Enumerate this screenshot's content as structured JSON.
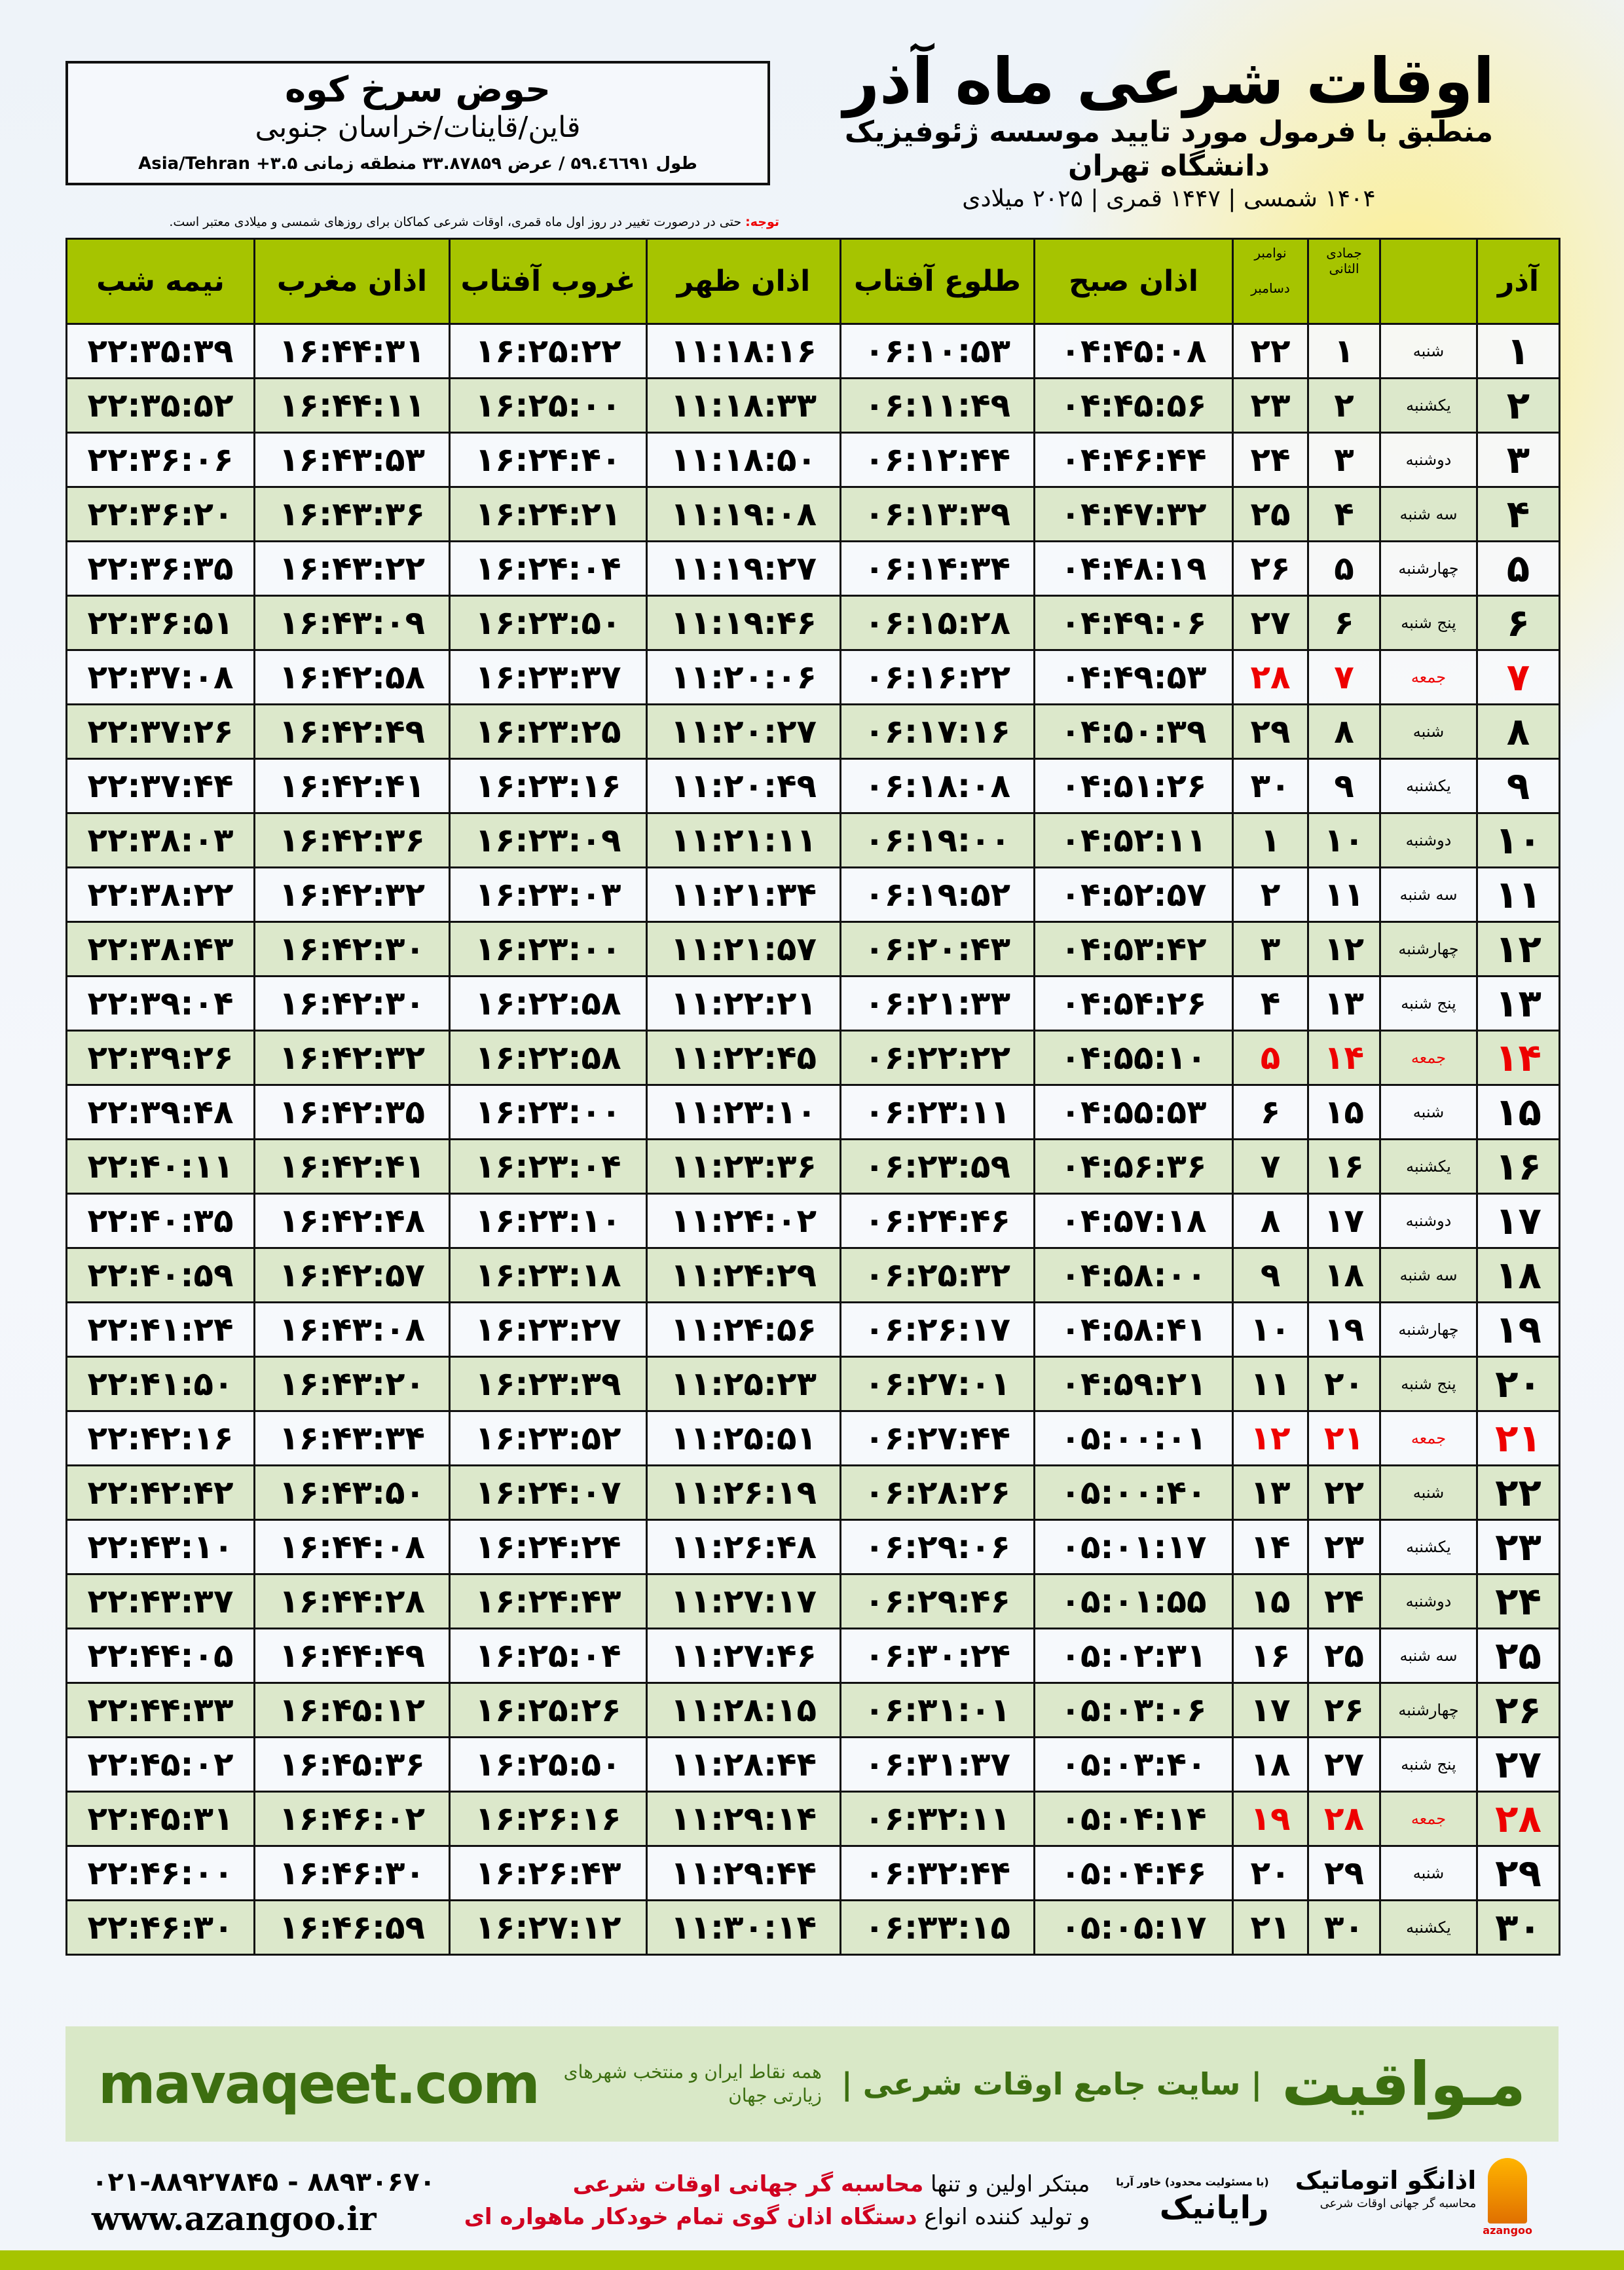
{
  "header": {
    "title": "اوقات شرعی ماه آذر",
    "subtitle": "منطبق با فرمول مورد تایید موسسه ژئوفیزیک دانشگاه تهران",
    "years": "۱۴۰۴ شمسی | ۱۴۴۷ قمری | ۲۰۲۵ میلادی",
    "note_label": "توجه:",
    "note_text": " حتی در درصورت تغییر در روز اول ماه قمری، اوقات شرعی کماکان برای روزهای شمسی و میلادی معتبر است."
  },
  "location": {
    "city": "حوض سرخ کوه",
    "region": "قاین/قاینات/خراسان جنوبی",
    "coords": "طول ۵۹.٤٦٦٩١ / عرض ۳۳.۸۷۸۵۹ منطقه زمانی Asia/Tehran +۳.۵"
  },
  "table": {
    "columns": {
      "midnight": "نیمه شب",
      "maghrib": "اذان مغرب",
      "sunset": "غروب آفتاب",
      "dhuhr": "اذان ظهر",
      "sunrise": "طلوع آفتاب",
      "fajr": "اذان صبح",
      "miladi": "نوامبر",
      "miladi2": "دسامبر",
      "qamari": "جمادی الثانی",
      "day": "آذر"
    },
    "rows": [
      {
        "day": "۱",
        "weekday": "شنبه",
        "qamari": "۱",
        "miladi": "۲۲",
        "fajr": "۰۴:۴۵:۰۸",
        "sunrise": "۰۶:۱۰:۵۳",
        "dhuhr": "۱۱:۱۸:۱۶",
        "sunset": "۱۶:۲۵:۲۲",
        "maghrib": "۱۶:۴۴:۳۱",
        "midnight": "۲۲:۳۵:۳۹",
        "holiday": false
      },
      {
        "day": "۲",
        "weekday": "یکشنبه",
        "qamari": "۲",
        "miladi": "۲۳",
        "fajr": "۰۴:۴۵:۵۶",
        "sunrise": "۰۶:۱۱:۴۹",
        "dhuhr": "۱۱:۱۸:۳۳",
        "sunset": "۱۶:۲۵:۰۰",
        "maghrib": "۱۶:۴۴:۱۱",
        "midnight": "۲۲:۳۵:۵۲",
        "holiday": false
      },
      {
        "day": "۳",
        "weekday": "دوشنبه",
        "qamari": "۳",
        "miladi": "۲۴",
        "fajr": "۰۴:۴۶:۴۴",
        "sunrise": "۰۶:۱۲:۴۴",
        "dhuhr": "۱۱:۱۸:۵۰",
        "sunset": "۱۶:۲۴:۴۰",
        "maghrib": "۱۶:۴۳:۵۳",
        "midnight": "۲۲:۳۶:۰۶",
        "holiday": false
      },
      {
        "day": "۴",
        "weekday": "سه شنبه",
        "qamari": "۴",
        "miladi": "۲۵",
        "fajr": "۰۴:۴۷:۳۲",
        "sunrise": "۰۶:۱۳:۳۹",
        "dhuhr": "۱۱:۱۹:۰۸",
        "sunset": "۱۶:۲۴:۲۱",
        "maghrib": "۱۶:۴۳:۳۶",
        "midnight": "۲۲:۳۶:۲۰",
        "holiday": false
      },
      {
        "day": "۵",
        "weekday": "چهارشنبه",
        "qamari": "۵",
        "miladi": "۲۶",
        "fajr": "۰۴:۴۸:۱۹",
        "sunrise": "۰۶:۱۴:۳۴",
        "dhuhr": "۱۱:۱۹:۲۷",
        "sunset": "۱۶:۲۴:۰۴",
        "maghrib": "۱۶:۴۳:۲۲",
        "midnight": "۲۲:۳۶:۳۵",
        "holiday": false
      },
      {
        "day": "۶",
        "weekday": "پنج شنبه",
        "qamari": "۶",
        "miladi": "۲۷",
        "fajr": "۰۴:۴۹:۰۶",
        "sunrise": "۰۶:۱۵:۲۸",
        "dhuhr": "۱۱:۱۹:۴۶",
        "sunset": "۱۶:۲۳:۵۰",
        "maghrib": "۱۶:۴۳:۰۹",
        "midnight": "۲۲:۳۶:۵۱",
        "holiday": false
      },
      {
        "day": "۷",
        "weekday": "جمعه",
        "qamari": "۷",
        "miladi": "۲۸",
        "fajr": "۰۴:۴۹:۵۳",
        "sunrise": "۰۶:۱۶:۲۲",
        "dhuhr": "۱۱:۲۰:۰۶",
        "sunset": "۱۶:۲۳:۳۷",
        "maghrib": "۱۶:۴۲:۵۸",
        "midnight": "۲۲:۳۷:۰۸",
        "holiday": true
      },
      {
        "day": "۸",
        "weekday": "شنبه",
        "qamari": "۸",
        "miladi": "۲۹",
        "fajr": "۰۴:۵۰:۳۹",
        "sunrise": "۰۶:۱۷:۱۶",
        "dhuhr": "۱۱:۲۰:۲۷",
        "sunset": "۱۶:۲۳:۲۵",
        "maghrib": "۱۶:۴۲:۴۹",
        "midnight": "۲۲:۳۷:۲۶",
        "holiday": false
      },
      {
        "day": "۹",
        "weekday": "یکشنبه",
        "qamari": "۹",
        "miladi": "۳۰",
        "fajr": "۰۴:۵۱:۲۶",
        "sunrise": "۰۶:۱۸:۰۸",
        "dhuhr": "۱۱:۲۰:۴۹",
        "sunset": "۱۶:۲۳:۱۶",
        "maghrib": "۱۶:۴۲:۴۱",
        "midnight": "۲۲:۳۷:۴۴",
        "holiday": false
      },
      {
        "day": "۱۰",
        "weekday": "دوشنبه",
        "qamari": "۱۰",
        "miladi": "۱",
        "fajr": "۰۴:۵۲:۱۱",
        "sunrise": "۰۶:۱۹:۰۰",
        "dhuhr": "۱۱:۲۱:۱۱",
        "sunset": "۱۶:۲۳:۰۹",
        "maghrib": "۱۶:۴۲:۳۶",
        "midnight": "۲۲:۳۸:۰۳",
        "holiday": false
      },
      {
        "day": "۱۱",
        "weekday": "سه شنبه",
        "qamari": "۱۱",
        "miladi": "۲",
        "fajr": "۰۴:۵۲:۵۷",
        "sunrise": "۰۶:۱۹:۵۲",
        "dhuhr": "۱۱:۲۱:۳۴",
        "sunset": "۱۶:۲۳:۰۳",
        "maghrib": "۱۶:۴۲:۳۲",
        "midnight": "۲۲:۳۸:۲۲",
        "holiday": false
      },
      {
        "day": "۱۲",
        "weekday": "چهارشنبه",
        "qamari": "۱۲",
        "miladi": "۳",
        "fajr": "۰۴:۵۳:۴۲",
        "sunrise": "۰۶:۲۰:۴۳",
        "dhuhr": "۱۱:۲۱:۵۷",
        "sunset": "۱۶:۲۳:۰۰",
        "maghrib": "۱۶:۴۲:۳۰",
        "midnight": "۲۲:۳۸:۴۳",
        "holiday": false
      },
      {
        "day": "۱۳",
        "weekday": "پنج شنبه",
        "qamari": "۱۳",
        "miladi": "۴",
        "fajr": "۰۴:۵۴:۲۶",
        "sunrise": "۰۶:۲۱:۳۳",
        "dhuhr": "۱۱:۲۲:۲۱",
        "sunset": "۱۶:۲۲:۵۸",
        "maghrib": "۱۶:۴۲:۳۰",
        "midnight": "۲۲:۳۹:۰۴",
        "holiday": false
      },
      {
        "day": "۱۴",
        "weekday": "جمعه",
        "qamari": "۱۴",
        "miladi": "۵",
        "fajr": "۰۴:۵۵:۱۰",
        "sunrise": "۰۶:۲۲:۲۲",
        "dhuhr": "۱۱:۲۲:۴۵",
        "sunset": "۱۶:۲۲:۵۸",
        "maghrib": "۱۶:۴۲:۳۲",
        "midnight": "۲۲:۳۹:۲۶",
        "holiday": true
      },
      {
        "day": "۱۵",
        "weekday": "شنبه",
        "qamari": "۱۵",
        "miladi": "۶",
        "fajr": "۰۴:۵۵:۵۳",
        "sunrise": "۰۶:۲۳:۱۱",
        "dhuhr": "۱۱:۲۳:۱۰",
        "sunset": "۱۶:۲۳:۰۰",
        "maghrib": "۱۶:۴۲:۳۵",
        "midnight": "۲۲:۳۹:۴۸",
        "holiday": false
      },
      {
        "day": "۱۶",
        "weekday": "یکشنبه",
        "qamari": "۱۶",
        "miladi": "۷",
        "fajr": "۰۴:۵۶:۳۶",
        "sunrise": "۰۶:۲۳:۵۹",
        "dhuhr": "۱۱:۲۳:۳۶",
        "sunset": "۱۶:۲۳:۰۴",
        "maghrib": "۱۶:۴۲:۴۱",
        "midnight": "۲۲:۴۰:۱۱",
        "holiday": false
      },
      {
        "day": "۱۷",
        "weekday": "دوشنبه",
        "qamari": "۱۷",
        "miladi": "۸",
        "fajr": "۰۴:۵۷:۱۸",
        "sunrise": "۰۶:۲۴:۴۶",
        "dhuhr": "۱۱:۲۴:۰۲",
        "sunset": "۱۶:۲۳:۱۰",
        "maghrib": "۱۶:۴۲:۴۸",
        "midnight": "۲۲:۴۰:۳۵",
        "holiday": false
      },
      {
        "day": "۱۸",
        "weekday": "سه شنبه",
        "qamari": "۱۸",
        "miladi": "۹",
        "fajr": "۰۴:۵۸:۰۰",
        "sunrise": "۰۶:۲۵:۳۲",
        "dhuhr": "۱۱:۲۴:۲۹",
        "sunset": "۱۶:۲۳:۱۸",
        "maghrib": "۱۶:۴۲:۵۷",
        "midnight": "۲۲:۴۰:۵۹",
        "holiday": false
      },
      {
        "day": "۱۹",
        "weekday": "چهارشنبه",
        "qamari": "۱۹",
        "miladi": "۱۰",
        "fajr": "۰۴:۵۸:۴۱",
        "sunrise": "۰۶:۲۶:۱۷",
        "dhuhr": "۱۱:۲۴:۵۶",
        "sunset": "۱۶:۲۳:۲۷",
        "maghrib": "۱۶:۴۳:۰۸",
        "midnight": "۲۲:۴۱:۲۴",
        "holiday": false
      },
      {
        "day": "۲۰",
        "weekday": "پنج شنبه",
        "qamari": "۲۰",
        "miladi": "۱۱",
        "fajr": "۰۴:۵۹:۲۱",
        "sunrise": "۰۶:۲۷:۰۱",
        "dhuhr": "۱۱:۲۵:۲۳",
        "sunset": "۱۶:۲۳:۳۹",
        "maghrib": "۱۶:۴۳:۲۰",
        "midnight": "۲۲:۴۱:۵۰",
        "holiday": false
      },
      {
        "day": "۲۱",
        "weekday": "جمعه",
        "qamari": "۲۱",
        "miladi": "۱۲",
        "fajr": "۰۵:۰۰:۰۱",
        "sunrise": "۰۶:۲۷:۴۴",
        "dhuhr": "۱۱:۲۵:۵۱",
        "sunset": "۱۶:۲۳:۵۲",
        "maghrib": "۱۶:۴۳:۳۴",
        "midnight": "۲۲:۴۲:۱۶",
        "holiday": true
      },
      {
        "day": "۲۲",
        "weekday": "شنبه",
        "qamari": "۲۲",
        "miladi": "۱۳",
        "fajr": "۰۵:۰۰:۴۰",
        "sunrise": "۰۶:۲۸:۲۶",
        "dhuhr": "۱۱:۲۶:۱۹",
        "sunset": "۱۶:۲۴:۰۷",
        "maghrib": "۱۶:۴۳:۵۰",
        "midnight": "۲۲:۴۲:۴۲",
        "holiday": false
      },
      {
        "day": "۲۳",
        "weekday": "یکشنبه",
        "qamari": "۲۳",
        "miladi": "۱۴",
        "fajr": "۰۵:۰۱:۱۷",
        "sunrise": "۰۶:۲۹:۰۶",
        "dhuhr": "۱۱:۲۶:۴۸",
        "sunset": "۱۶:۲۴:۲۴",
        "maghrib": "۱۶:۴۴:۰۸",
        "midnight": "۲۲:۴۳:۱۰",
        "holiday": false
      },
      {
        "day": "۲۴",
        "weekday": "دوشنبه",
        "qamari": "۲۴",
        "miladi": "۱۵",
        "fajr": "۰۵:۰۱:۵۵",
        "sunrise": "۰۶:۲۹:۴۶",
        "dhuhr": "۱۱:۲۷:۱۷",
        "sunset": "۱۶:۲۴:۴۳",
        "maghrib": "۱۶:۴۴:۲۸",
        "midnight": "۲۲:۴۳:۳۷",
        "holiday": false
      },
      {
        "day": "۲۵",
        "weekday": "سه شنبه",
        "qamari": "۲۵",
        "miladi": "۱۶",
        "fajr": "۰۵:۰۲:۳۱",
        "sunrise": "۰۶:۳۰:۲۴",
        "dhuhr": "۱۱:۲۷:۴۶",
        "sunset": "۱۶:۲۵:۰۴",
        "maghrib": "۱۶:۴۴:۴۹",
        "midnight": "۲۲:۴۴:۰۵",
        "holiday": false
      },
      {
        "day": "۲۶",
        "weekday": "چهارشنبه",
        "qamari": "۲۶",
        "miladi": "۱۷",
        "fajr": "۰۵:۰۳:۰۶",
        "sunrise": "۰۶:۳۱:۰۱",
        "dhuhr": "۱۱:۲۸:۱۵",
        "sunset": "۱۶:۲۵:۲۶",
        "maghrib": "۱۶:۴۵:۱۲",
        "midnight": "۲۲:۴۴:۳۳",
        "holiday": false
      },
      {
        "day": "۲۷",
        "weekday": "پنج شنبه",
        "qamari": "۲۷",
        "miladi": "۱۸",
        "fajr": "۰۵:۰۳:۴۰",
        "sunrise": "۰۶:۳۱:۳۷",
        "dhuhr": "۱۱:۲۸:۴۴",
        "sunset": "۱۶:۲۵:۵۰",
        "maghrib": "۱۶:۴۵:۳۶",
        "midnight": "۲۲:۴۵:۰۲",
        "holiday": false
      },
      {
        "day": "۲۸",
        "weekday": "جمعه",
        "qamari": "۲۸",
        "miladi": "۱۹",
        "fajr": "۰۵:۰۴:۱۴",
        "sunrise": "۰۶:۳۲:۱۱",
        "dhuhr": "۱۱:۲۹:۱۴",
        "sunset": "۱۶:۲۶:۱۶",
        "maghrib": "۱۶:۴۶:۰۲",
        "midnight": "۲۲:۴۵:۳۱",
        "holiday": true
      },
      {
        "day": "۲۹",
        "weekday": "شنبه",
        "qamari": "۲۹",
        "miladi": "۲۰",
        "fajr": "۰۵:۰۴:۴۶",
        "sunrise": "۰۶:۳۲:۴۴",
        "dhuhr": "۱۱:۲۹:۴۴",
        "sunset": "۱۶:۲۶:۴۳",
        "maghrib": "۱۶:۴۶:۳۰",
        "midnight": "۲۲:۴۶:۰۰",
        "holiday": false
      },
      {
        "day": "۳۰",
        "weekday": "یکشنبه",
        "qamari": "۳۰",
        "miladi": "۲۱",
        "fajr": "۰۵:۰۵:۱۷",
        "sunrise": "۰۶:۳۳:۱۵",
        "dhuhr": "۱۱:۳۰:۱۴",
        "sunset": "۱۶:۲۷:۱۲",
        "maghrib": "۱۶:۴۶:۵۹",
        "midnight": "۲۲:۴۶:۳۰",
        "holiday": false
      }
    ]
  },
  "promo": {
    "brand": "مـواقیت",
    "tagline": "| سایت جامع اوقات شرعی |",
    "tagline2": "همه نقاط ایران و منتخب شهرهای زیارتی جهان",
    "url": "mavaqeet.com"
  },
  "footer": {
    "phones": "۰۲۱-۸۸۹۲۷۸۴۵ - ۸۸۹۳۰۶۷۰",
    "website": "www.azangoo.ir",
    "slogan1_a": "مبتکر اولین و تنها ",
    "slogan1_b": "محاسبه گر جهانی اوقات شرعی",
    "slogan2_a": "و تولید کننده انواع ",
    "slogan2_b": "دستگاه اذان گوی تمام خودکار ماهواره ای",
    "logo_rayanik": "رایانیک",
    "logo_rayanik_small": "(با مسئولیت محدود) خاور آریا",
    "logo_azangoo": "اذانگو اتوماتیک",
    "logo_azangoo_small": "محاسبه گر جهانی اوقات شرعی",
    "logo_azangoo_en": "azangoo"
  },
  "colors": {
    "header_green": "#a6c400",
    "row_green": "#dce8cb",
    "holiday_red": "#e00000",
    "brand_green": "#3c6e10"
  }
}
